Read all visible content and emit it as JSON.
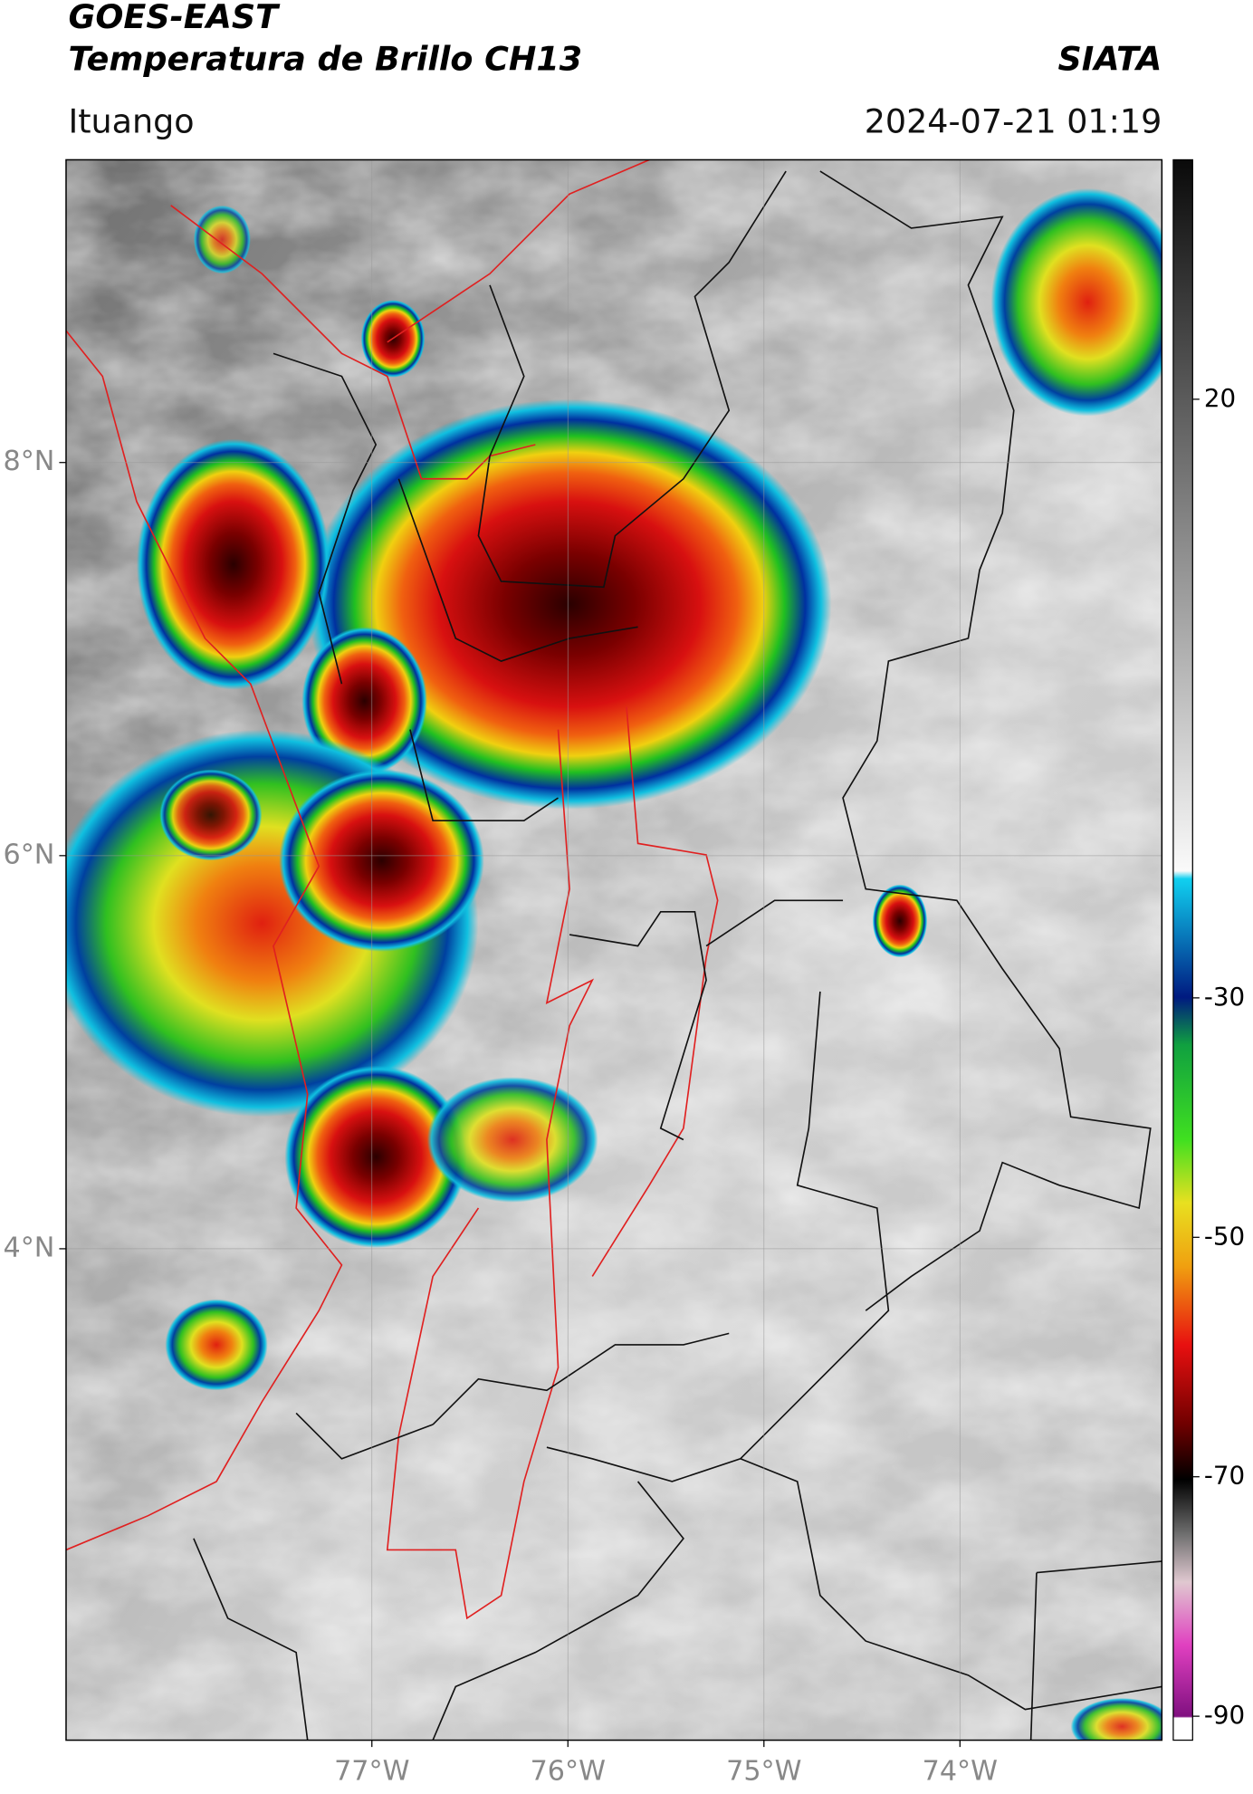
{
  "header": {
    "title": "GOES-EAST",
    "subtitle": "Temperatura de Brillo CH13",
    "brand": "SIATA",
    "location": "Ituango",
    "datetime": "2024-07-21 01:19"
  },
  "map": {
    "xlim": [
      -78.56,
      -72.97
    ],
    "ylim": [
      1.5,
      9.54
    ],
    "xticks": [
      {
        "value": -77,
        "label": "77°W"
      },
      {
        "value": -76,
        "label": "76°W"
      },
      {
        "value": -75,
        "label": "75°W"
      },
      {
        "value": -74,
        "label": "74°W"
      }
    ],
    "yticks": [
      {
        "value": 8,
        "label": "8°N"
      },
      {
        "value": 6,
        "label": "6°N"
      },
      {
        "value": 4,
        "label": "4°N"
      }
    ],
    "grid": true
  },
  "colorbar": {
    "lim": [
      -92,
      40
    ],
    "ticks": [
      20,
      -30,
      -50,
      -70,
      -90
    ]
  }
}
